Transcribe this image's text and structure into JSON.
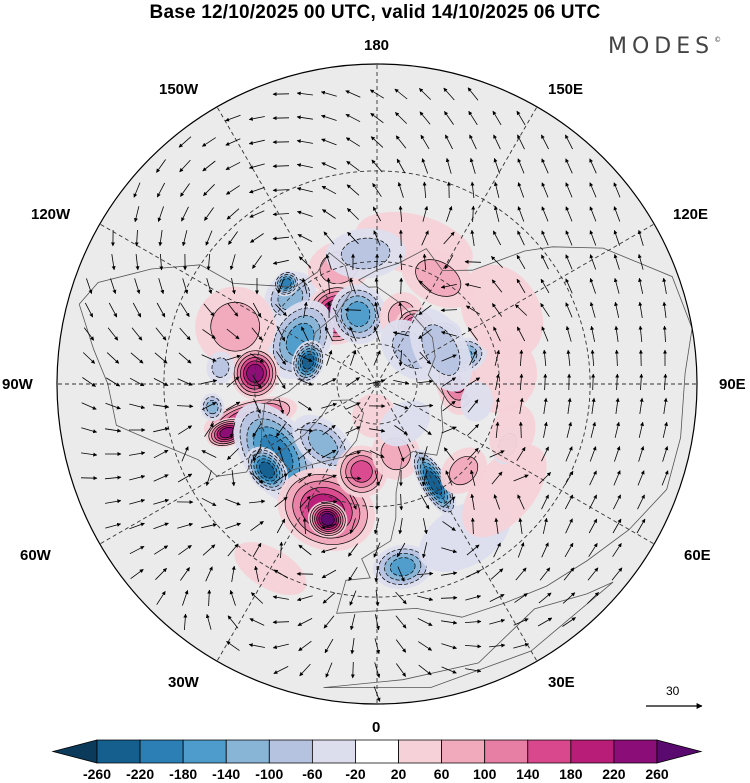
{
  "header": {
    "title": "Base 12/10/2025 00 UTC, valid 14/10/2025 06 UTC",
    "brand": "MODES",
    "brand_mark": "©"
  },
  "map": {
    "projection": "polar-stereographic-north",
    "longitude_labels": {
      "top": "180",
      "bottom": "0",
      "left": "90W",
      "right": "90E",
      "upper_left_1": "150W",
      "upper_left_2": "120W",
      "lower_left_1": "60W",
      "lower_left_2": "30W",
      "upper_right_1": "150E",
      "upper_right_2": "120E",
      "lower_right_1": "60E",
      "lower_right_2": "30E"
    },
    "reference_vector_label": "30",
    "anomaly_cells": [
      {
        "lon": -135,
        "lat": 60,
        "value": -130,
        "rx": 28,
        "ry": 24
      },
      {
        "lon": -138,
        "lat": 57,
        "value": -210,
        "rx": 14,
        "ry": 12
      },
      {
        "lon": -162,
        "lat": 60,
        "value": 70,
        "rx": 32,
        "ry": 26
      },
      {
        "lon": 165,
        "lat": 55,
        "value": 40,
        "rx": 60,
        "ry": 30
      },
      {
        "lon": 150,
        "lat": 60,
        "value": 60,
        "rx": 40,
        "ry": 26
      },
      {
        "lon": -150,
        "lat": 70,
        "value": 230,
        "rx": 32,
        "ry": 30
      },
      {
        "lon": -165,
        "lat": 72,
        "value": -140,
        "rx": 28,
        "ry": 30
      },
      {
        "lon": -175,
        "lat": 58,
        "value": -70,
        "rx": 40,
        "ry": 25
      },
      {
        "lon": 160,
        "lat": 72,
        "value": 90,
        "rx": 22,
        "ry": 24
      },
      {
        "lon": 145,
        "lat": 73,
        "value": 180,
        "rx": 22,
        "ry": 20
      },
      {
        "lon": 125,
        "lat": 72,
        "value": -200,
        "rx": 20,
        "ry": 28
      },
      {
        "lon": 135,
        "lat": 78,
        "value": -80,
        "rx": 35,
        "ry": 25
      },
      {
        "lon": -120,
        "lat": 68,
        "value": -160,
        "rx": 42,
        "ry": 30
      },
      {
        "lon": -108,
        "lat": 72,
        "value": -220,
        "rx": 22,
        "ry": 16
      },
      {
        "lon": -112,
        "lat": 53,
        "value": 60,
        "rx": 40,
        "ry": 40
      },
      {
        "lon": -95,
        "lat": 60,
        "value": 240,
        "rx": 26,
        "ry": 24
      },
      {
        "lon": -96,
        "lat": 52,
        "value": -90,
        "rx": 16,
        "ry": 14
      },
      {
        "lon": -75,
        "lat": 58,
        "value": 180,
        "rx": 18,
        "ry": 48
      },
      {
        "lon": -72,
        "lat": 52,
        "value": 230,
        "rx": 14,
        "ry": 22
      },
      {
        "lon": -82,
        "lat": 50,
        "value": -120,
        "rx": 14,
        "ry": 12
      },
      {
        "lon": -55,
        "lat": 60,
        "value": -180,
        "rx": 58,
        "ry": 34
      },
      {
        "lon": -52,
        "lat": 56,
        "value": -240,
        "rx": 26,
        "ry": 18
      },
      {
        "lon": -42,
        "lat": 70,
        "value": -100,
        "rx": 36,
        "ry": 22
      },
      {
        "lon": -22,
        "lat": 57,
        "value": 200,
        "rx": 50,
        "ry": 40
      },
      {
        "lon": -20,
        "lat": 55,
        "value": 260,
        "rx": 20,
        "ry": 18
      },
      {
        "lon": -10,
        "lat": 68,
        "value": 150,
        "rx": 26,
        "ry": 26
      },
      {
        "lon": 15,
        "lat": 72,
        "value": 80,
        "rx": 24,
        "ry": 26
      },
      {
        "lon": 8,
        "lat": 46,
        "value": -140,
        "rx": 30,
        "ry": 22
      },
      {
        "lon": 30,
        "lat": 48,
        "value": -50,
        "rx": 50,
        "ry": 30
      },
      {
        "lon": 30,
        "lat": 62,
        "value": -230,
        "rx": 14,
        "ry": 38
      },
      {
        "lon": 45,
        "lat": 60,
        "value": 70,
        "rx": 26,
        "ry": 20
      },
      {
        "lon": 50,
        "lat": 50,
        "value": 50,
        "rx": 55,
        "ry": 30
      },
      {
        "lon": 65,
        "lat": 55,
        "value": -60,
        "rx": 20,
        "ry": 14
      },
      {
        "lon": 95,
        "lat": 70,
        "value": 150,
        "rx": 38,
        "ry": 22
      },
      {
        "lon": 95,
        "lat": 60,
        "value": 40,
        "rx": 40,
        "ry": 38
      },
      {
        "lon": 70,
        "lat": 55,
        "value": 40,
        "rx": 30,
        "ry": 22
      },
      {
        "lon": 108,
        "lat": 68,
        "value": -160,
        "rx": 18,
        "ry": 26
      },
      {
        "lon": 118,
        "lat": 72,
        "value": -60,
        "rx": 45,
        "ry": 26
      },
      {
        "lon": 120,
        "lat": 55,
        "value": 40,
        "rx": 50,
        "ry": 38
      },
      {
        "lon": 80,
        "lat": 65,
        "value": -30,
        "rx": 20,
        "ry": 16
      },
      {
        "lon": -5,
        "lat": 82,
        "value": 40,
        "rx": 22,
        "ry": 22
      },
      {
        "lon": 35,
        "lat": 78,
        "value": -40,
        "rx": 28,
        "ry": 20
      },
      {
        "lon": -30,
        "lat": 40,
        "value": 40,
        "rx": 40,
        "ry": 20
      }
    ]
  },
  "colorbar": {
    "labels": [
      "-260",
      "-220",
      "-180",
      "-140",
      "-100",
      "-60",
      "-20",
      "20",
      "60",
      "100",
      "140",
      "180",
      "220",
      "260"
    ],
    "colors": [
      "#0b3a5b",
      "#155f8f",
      "#2b7fb4",
      "#4e9ccb",
      "#88b4d6",
      "#b6c3e0",
      "#dcdeee",
      "#ffffff",
      "#f6d2d8",
      "#f1a9bc",
      "#e77fa4",
      "#d9488d",
      "#b81d78",
      "#8b0e78",
      "#5a0a6e"
    ]
  }
}
